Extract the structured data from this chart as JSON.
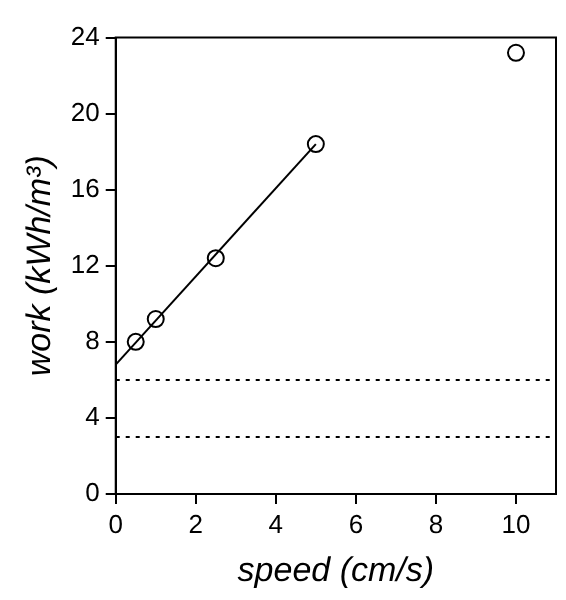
{
  "chart_data": {
    "type": "scatter",
    "xlabel": "speed (cm/s)",
    "ylabel": "work (kWh/m³)",
    "xlim": [
      0,
      11
    ],
    "xticks": [
      0,
      2,
      4,
      6,
      8,
      10
    ],
    "ylim": [
      0,
      24
    ],
    "yticks": [
      0,
      4,
      8,
      12,
      16,
      20,
      24
    ],
    "grid": false,
    "legend": false,
    "series": [
      {
        "type": "scatter",
        "color": "#000000",
        "marker": "circle",
        "x": [
          0.5,
          1,
          2.5,
          5,
          10
        ],
        "values": [
          8.0,
          9.2,
          12.4,
          18.4,
          23.2
        ]
      },
      {
        "type": "line",
        "color": "#000000",
        "marker": "none",
        "line_style": "solid",
        "x": [
          0,
          5
        ],
        "values": [
          6.8,
          18.4
        ]
      }
    ],
    "ref_lines": [
      {
        "axis": "y",
        "value": 6,
        "line_style": "dotted",
        "color": "#000000"
      },
      {
        "axis": "y",
        "value": 3,
        "line_style": "dotted",
        "color": "#000000"
      }
    ]
  }
}
